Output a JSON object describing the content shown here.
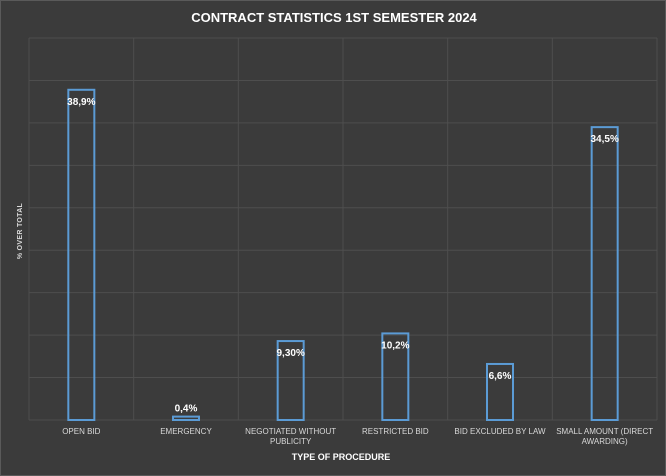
{
  "chart_data": {
    "type": "bar",
    "title": "CONTRACT STATISTICS 1ST SEMESTER 2024",
    "xlabel": "TYPE OF PROCEDURE",
    "ylabel": "% OVER TOTAL",
    "categories": [
      "OPEN BID",
      "EMERGENCY",
      "NEGOTIATED WITHOUT PUBLICITY",
      "RESTRICTED BID",
      "BID EXCLUDED BY LAW",
      "SMALL AMOUNT (DIRECT AWARDING)"
    ],
    "values": [
      38.9,
      0.4,
      9.3,
      10.2,
      6.6,
      34.5
    ],
    "data_labels": [
      "38,9%",
      "0,4%",
      "9,30%",
      "10,2%",
      "6,6%",
      "34,5%"
    ],
    "ylim": [
      0,
      45
    ],
    "grid": true,
    "legend": "none",
    "colors": {
      "bar_outline": "#5b9bd5",
      "background": "#3b3b3b",
      "text": "#ffffff"
    }
  }
}
